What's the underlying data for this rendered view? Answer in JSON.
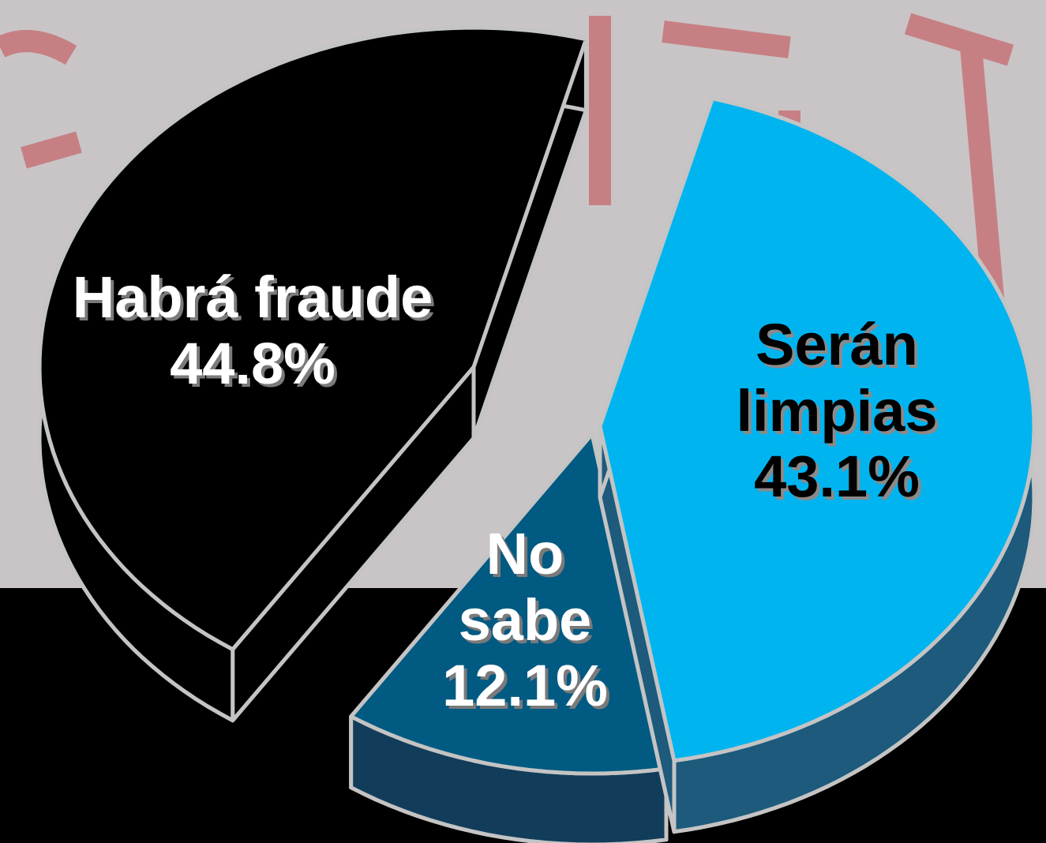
{
  "chart_data": {
    "type": "pie",
    "categories": [
      "Habrá fraude",
      "Serán limpias",
      "No sabe"
    ],
    "values": [
      44.8,
      43.1,
      12.1
    ],
    "value_labels": [
      "44.8%",
      "43.1%",
      "12.1%"
    ],
    "colors": [
      "#000000",
      "#00b4f0",
      "#005a82"
    ]
  }
}
